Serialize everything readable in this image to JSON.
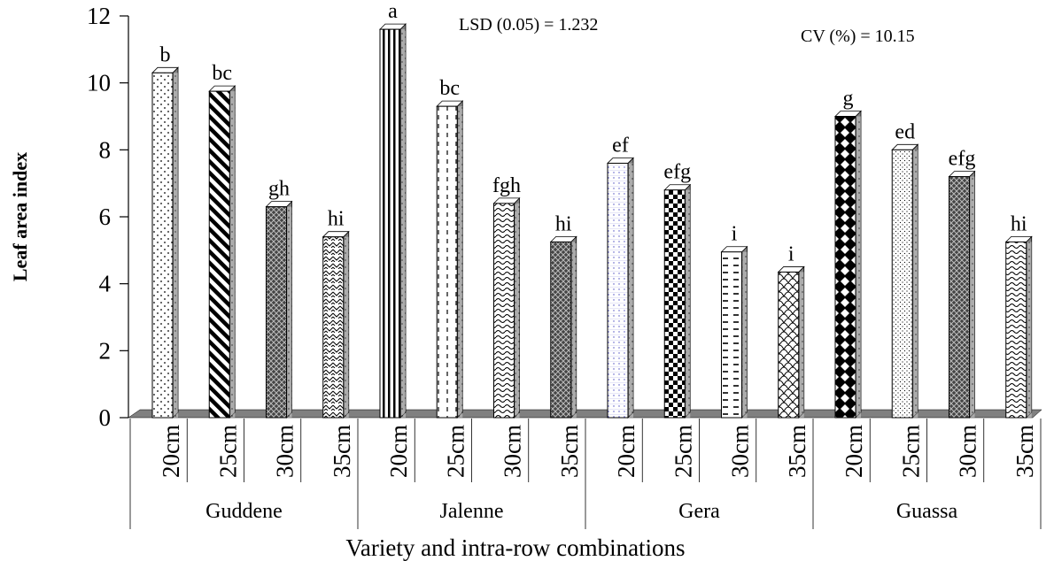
{
  "chart_data": {
    "type": "bar",
    "style": "3d-column",
    "ylabel": "Leaf area index",
    "xlabel": "Variety and intra-row combinations",
    "ylim": [
      0,
      12
    ],
    "yticks": [
      "0",
      "2",
      "4",
      "6",
      "8",
      "10",
      "12"
    ],
    "grid": false,
    "annotations": {
      "lsd": "LSD (0.05) = 1.232",
      "cv": "CV (%) = 10.15"
    },
    "groups": [
      {
        "name": "Guddene",
        "bars": [
          {
            "category": "20cm",
            "value": 10.3,
            "label": "b",
            "pattern": "dots"
          },
          {
            "category": "25cm",
            "value": 9.75,
            "label": "bc",
            "pattern": "diag"
          },
          {
            "category": "30cm",
            "value": 6.3,
            "label": "gh",
            "pattern": "crosshatch"
          },
          {
            "category": "35cm",
            "value": 5.4,
            "label": "hi",
            "pattern": "weave"
          }
        ]
      },
      {
        "name": "Jalenne",
        "bars": [
          {
            "category": "20cm",
            "value": 11.6,
            "label": "a",
            "pattern": "vstripes"
          },
          {
            "category": "25cm",
            "value": 9.3,
            "label": "bc",
            "pattern": "dashv"
          },
          {
            "category": "30cm",
            "value": 6.4,
            "label": "fgh",
            "pattern": "wave"
          },
          {
            "category": "35cm",
            "value": 5.25,
            "label": "hi",
            "pattern": "crosshatch"
          }
        ]
      },
      {
        "name": "Gera",
        "bars": [
          {
            "category": "20cm",
            "value": 7.6,
            "label": "ef",
            "pattern": "dotgrid"
          },
          {
            "category": "25cm",
            "value": 6.8,
            "label": "efg",
            "pattern": "checker"
          },
          {
            "category": "30cm",
            "value": 4.95,
            "label": "i",
            "pattern": "dashh"
          },
          {
            "category": "35cm",
            "value": 4.35,
            "label": "i",
            "pattern": "scales"
          }
        ]
      },
      {
        "name": "Guassa",
        "bars": [
          {
            "category": "20cm",
            "value": 9.0,
            "label": "g",
            "pattern": "diamond"
          },
          {
            "category": "25cm",
            "value": 8.0,
            "label": "ed",
            "pattern": "finedots"
          },
          {
            "category": "30cm",
            "value": 7.2,
            "label": "efg",
            "pattern": "crosshatch"
          },
          {
            "category": "35cm",
            "value": 5.25,
            "label": "hi",
            "pattern": "wave"
          }
        ]
      }
    ],
    "colors": {
      "floor": "#808080",
      "side": "#808080",
      "top": "#ffffff",
      "outline": "#000000",
      "pattern": "#000000"
    }
  }
}
